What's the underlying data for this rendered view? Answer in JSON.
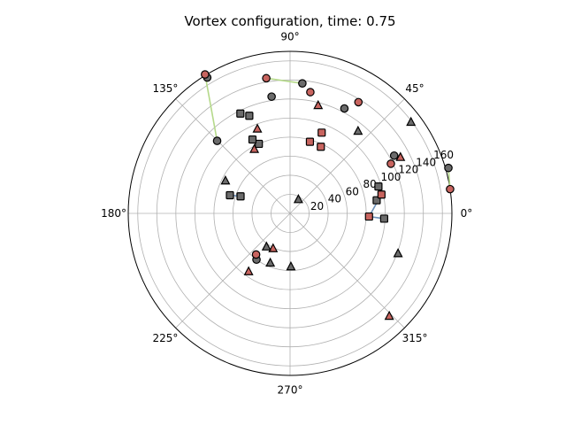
{
  "chart_data": {
    "type": "scatter",
    "projection": "polar",
    "title": "Vortex configuration, time: 0.75",
    "angle_ticks_deg": [
      0,
      45,
      90,
      135,
      180,
      225,
      270,
      315
    ],
    "angle_tick_labels": [
      "0°",
      "45°",
      "90°",
      "135°",
      "180°",
      "225°",
      "270°",
      "315°"
    ],
    "radial_ticks": [
      20,
      40,
      60,
      80,
      100,
      120,
      140,
      160
    ],
    "radial_tick_labels": [
      "20",
      "40",
      "60",
      "80",
      "100",
      "120",
      "140",
      "160"
    ],
    "rlim": [
      0,
      170
    ],
    "radial_label_angle_deg": 22.5,
    "grid": true,
    "legend": "none",
    "colors": {
      "red_marker": "#c8645f",
      "gray_marker": "#6b6b6b",
      "marker_edge": "#000000",
      "link_green": "#b5d98a",
      "link_blue": "#6b8fb8",
      "grid": "#b0b0b0"
    },
    "series": [
      {
        "marker": "circle",
        "fill": "#6b6b6b",
        "points": [
          {
            "theta": 62.6,
            "r": 124
          },
          {
            "theta": 99.0,
            "r": 124
          },
          {
            "theta": 121.4,
            "r": 167
          },
          {
            "theta": 84.6,
            "r": 137
          },
          {
            "theta": 135.2,
            "r": 108
          },
          {
            "theta": 16.0,
            "r": 173
          },
          {
            "theta": 29.0,
            "r": 125
          },
          {
            "theta": 234.0,
            "r": 60
          }
        ]
      },
      {
        "marker": "circle",
        "fill": "#c8645f",
        "points": [
          {
            "theta": 58.4,
            "r": 137
          },
          {
            "theta": 121.5,
            "r": 171
          },
          {
            "theta": 100.0,
            "r": 144
          },
          {
            "theta": 80.5,
            "r": 129
          },
          {
            "theta": 8.6,
            "r": 170
          },
          {
            "theta": 26.2,
            "r": 118
          },
          {
            "theta": 230.4,
            "r": 56
          }
        ]
      },
      {
        "marker": "triangle",
        "fill": "#c8645f",
        "points": [
          {
            "theta": 75.4,
            "r": 117
          },
          {
            "theta": 111.2,
            "r": 95
          },
          {
            "theta": 119.2,
            "r": 77
          },
          {
            "theta": 26.9,
            "r": 130
          },
          {
            "theta": 234.5,
            "r": 75
          },
          {
            "theta": 244.2,
            "r": 41
          },
          {
            "theta": 314.0,
            "r": 150
          }
        ]
      },
      {
        "marker": "triangle",
        "fill": "#6b6b6b",
        "points": [
          {
            "theta": 50.4,
            "r": 112
          },
          {
            "theta": 37.0,
            "r": 159
          },
          {
            "theta": 153.3,
            "r": 76
          },
          {
            "theta": 59.1,
            "r": 17
          },
          {
            "theta": 339.6,
            "r": 121
          },
          {
            "theta": 248.2,
            "r": 56
          },
          {
            "theta": 234.8,
            "r": 43
          },
          {
            "theta": 270.9,
            "r": 56
          }
        ]
      },
      {
        "marker": "square",
        "fill": "#6b6b6b",
        "points": [
          {
            "theta": 116.5,
            "r": 117
          },
          {
            "theta": 112.7,
            "r": 111
          },
          {
            "theta": 114.2,
            "r": 80
          },
          {
            "theta": 117.0,
            "r": 87
          },
          {
            "theta": 163.2,
            "r": 66
          },
          {
            "theta": 161.0,
            "r": 55
          },
          {
            "theta": 16.9,
            "r": 97
          },
          {
            "theta": 356.8,
            "r": 99
          },
          {
            "theta": 8.6,
            "r": 92
          }
        ]
      },
      {
        "marker": "square",
        "fill": "#c8645f",
        "points": [
          {
            "theta": 74.5,
            "r": 78
          },
          {
            "theta": 68.6,
            "r": 91
          },
          {
            "theta": 65.2,
            "r": 77
          },
          {
            "theta": 11.6,
            "r": 98
          },
          {
            "theta": 357.7,
            "r": 83
          }
        ]
      }
    ],
    "links": [
      {
        "color": "#b5d98a",
        "from": {
          "theta": 100.0,
          "r": 144
        },
        "to": {
          "theta": 84.6,
          "r": 137
        }
      },
      {
        "color": "#b5d98a",
        "from": {
          "theta": 16.0,
          "r": 173
        },
        "to": {
          "theta": 8.6,
          "r": 170
        }
      },
      {
        "color": "#b5d98a",
        "from": {
          "theta": 135.2,
          "r": 108
        },
        "to": {
          "theta": 121.5,
          "r": 171
        }
      },
      {
        "color": "#6b8fb8",
        "from": {
          "theta": 163.2,
          "r": 66
        },
        "to": {
          "theta": 161.0,
          "r": 55
        }
      },
      {
        "color": "#6b8fb8",
        "from": {
          "theta": 357.7,
          "r": 83
        },
        "to": {
          "theta": 356.8,
          "r": 99
        }
      },
      {
        "color": "#6b8fb8",
        "from": {
          "theta": 16.9,
          "r": 97
        },
        "to": {
          "theta": 11.6,
          "r": 98
        }
      },
      {
        "color": "#6b8fb8",
        "from": {
          "theta": 11.6,
          "r": 98
        },
        "to": {
          "theta": 8.6,
          "r": 92
        }
      },
      {
        "color": "#6b8fb8",
        "from": {
          "theta": 357.7,
          "r": 83
        },
        "to": {
          "theta": 11.6,
          "r": 98
        }
      }
    ]
  }
}
